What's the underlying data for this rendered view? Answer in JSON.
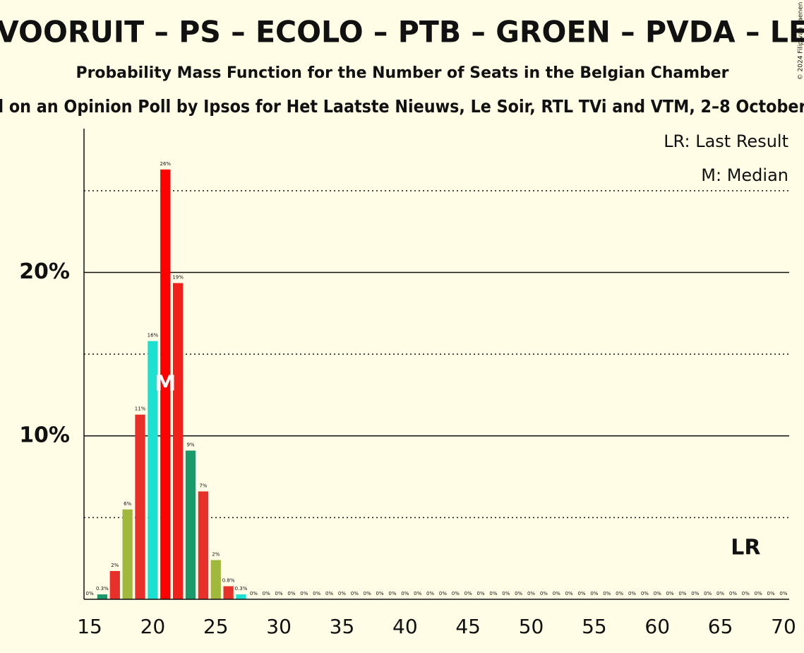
{
  "chart_data": {
    "type": "bar",
    "title": "VOORUIT – PS – ECOLO – PTB – GROEN – PVDA – LE",
    "subtitle": "Probability Mass Function for the Number of Seats in the Belgian Chamber",
    "source_line": "l on an Opinion Poll by Ipsos for Het Laatste Nieuws, Le Soir, RTL TVi and VTM, 2–8 October",
    "copyright": "© 2024 Filip van Laenen",
    "legend_lines": [
      "LR: Last Result",
      "M: Median"
    ],
    "median": {
      "x": 21,
      "label": "M"
    },
    "last_result": {
      "x": 67,
      "label": "LR"
    },
    "x": [
      15,
      16,
      17,
      18,
      19,
      20,
      21,
      22,
      23,
      24,
      25,
      26,
      27,
      28,
      29,
      30,
      31,
      32,
      33,
      34,
      35,
      36,
      37,
      38,
      39,
      40,
      41,
      42,
      43,
      44,
      45,
      46,
      47,
      48,
      49,
      50,
      51,
      52,
      53,
      54,
      55,
      56,
      57,
      58,
      59,
      60,
      61,
      62,
      63,
      64,
      65,
      66,
      67,
      68,
      69,
      70
    ],
    "values": [
      0,
      0.3,
      1.73,
      5.5,
      11.3,
      15.8,
      26.3,
      19.35,
      9.1,
      6.6,
      2.4,
      0.8,
      0.3,
      0,
      0,
      0,
      0,
      0,
      0,
      0,
      0,
      0,
      0,
      0,
      0,
      0,
      0,
      0,
      0,
      0,
      0,
      0,
      0,
      0,
      0,
      0,
      0,
      0,
      0,
      0,
      0,
      0,
      0,
      0,
      0,
      0,
      0,
      0,
      0,
      0,
      0,
      0,
      0,
      0,
      0,
      0
    ],
    "value_labels": [
      "0%",
      "0.3%",
      "2%",
      "6%",
      "11%",
      "16%",
      "26%",
      "19%",
      "9%",
      "7%",
      "2%",
      "0.8%",
      "0.3%",
      "0%",
      "0%",
      "0%",
      "0%",
      "0%",
      "0%",
      "0%",
      "0%",
      "0%",
      "0%",
      "0%",
      "0%",
      "0%",
      "0%",
      "0%",
      "0%",
      "0%",
      "0%",
      "0%",
      "0%",
      "0%",
      "0%",
      "0%",
      "0%",
      "0%",
      "0%",
      "0%",
      "0%",
      "0%",
      "0%",
      "0%",
      "0%",
      "0%",
      "0%",
      "0%",
      "0%",
      "0%",
      "0%",
      "0%",
      "0%",
      "0%",
      "0%",
      "0%"
    ],
    "colors": [
      "#e8302a",
      "#1a9a6a",
      "#e8302a",
      "#a0b83c",
      "#e8302a",
      "#1de0d0",
      "#ff0000",
      "#f0201b",
      "#1a9a6a",
      "#e8302a",
      "#a0b83c",
      "#e8302a",
      "#1de0d0",
      "#e8302a",
      "#e8302a",
      "#e8302a",
      "#e8302a",
      "#e8302a",
      "#e8302a",
      "#e8302a",
      "#e8302a",
      "#e8302a",
      "#e8302a",
      "#e8302a",
      "#e8302a",
      "#e8302a",
      "#e8302a",
      "#e8302a",
      "#e8302a",
      "#e8302a",
      "#e8302a",
      "#e8302a",
      "#e8302a",
      "#e8302a",
      "#e8302a",
      "#e8302a",
      "#e8302a",
      "#e8302a",
      "#e8302a",
      "#e8302a",
      "#e8302a",
      "#e8302a",
      "#e8302a",
      "#e8302a",
      "#e8302a",
      "#e8302a",
      "#e8302a",
      "#e8302a",
      "#e8302a",
      "#e8302a",
      "#e8302a",
      "#e8302a",
      "#e8302a",
      "#e8302a",
      "#e8302a",
      "#e8302a"
    ],
    "xlim": [
      14.55,
      70.45
    ],
    "xticks": [
      15,
      20,
      25,
      30,
      35,
      40,
      45,
      50,
      55,
      60,
      65,
      70
    ],
    "ylim": [
      0,
      28.8
    ],
    "yticks": [
      {
        "value": 10,
        "label": "10%"
      },
      {
        "value": 20,
        "label": "20%"
      }
    ],
    "minor_yticks": [
      5,
      15,
      25
    ],
    "grid": true
  }
}
